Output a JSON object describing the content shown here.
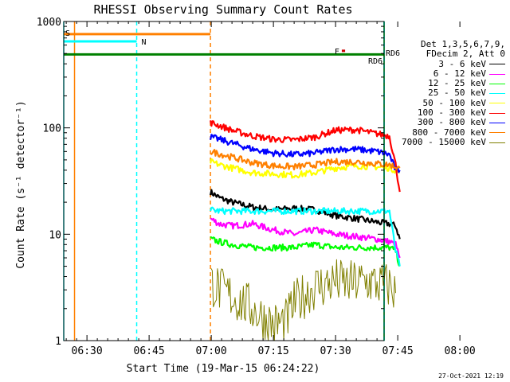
{
  "chart_data": {
    "type": "line",
    "title": "RHESSI Observing Summary Count Rates",
    "xlabel": "Start Time (19-Mar-15 06:24:22)",
    "ylabel": "Count Rate (s⁻¹ detector⁻¹)",
    "yscale": "log",
    "ylim": [
      1,
      1000
    ],
    "xlim_minutes_after_0600": [
      24.4,
      62.0
    ],
    "x_tick_labels": [
      "06:30",
      "06:45",
      "07:00",
      "07:15",
      "07:30",
      "07:45",
      "08:00"
    ],
    "x_tick_minutes_after_0600": [
      30,
      45,
      60,
      75,
      90,
      105,
      120
    ],
    "y_tick_labels": [
      "1",
      "10",
      "100",
      "1000"
    ],
    "y_tick_values": [
      1,
      10,
      100,
      1000
    ],
    "legend_header": [
      "Det 1,3,5,6,7,9,",
      "FDecim 2, Att 0"
    ],
    "legend_placement": "right",
    "series": [
      {
        "name": "3 - 6 keV",
        "color": "#000000",
        "x": [
          59.8,
          62,
          65,
          70,
          75,
          80,
          85,
          90,
          95,
          100,
          103,
          104.5,
          105.5
        ],
        "y": [
          25,
          22,
          20,
          18,
          17,
          17.5,
          17,
          15,
          14,
          13,
          12.5,
          12,
          9
        ]
      },
      {
        "name": "6 - 12 keV",
        "color": "#ff00ff",
        "x": [
          59.8,
          62,
          65,
          70,
          75,
          80,
          85,
          90,
          95,
          100,
          103,
          104.5,
          105.5
        ],
        "y": [
          14,
          12.5,
          12,
          12.5,
          11,
          10,
          11,
          10,
          9.5,
          9,
          8.5,
          8,
          6
        ]
      },
      {
        "name": "12 - 25 keV",
        "color": "#00ff00",
        "x": [
          59.8,
          62,
          65,
          70,
          75,
          80,
          85,
          90,
          95,
          100,
          103,
          104.5,
          105.5
        ],
        "y": [
          9,
          8.5,
          8,
          7.5,
          7.5,
          7.5,
          8,
          7.5,
          7.5,
          7.5,
          7.5,
          7,
          5
        ]
      },
      {
        "name": "25 - 50 keV",
        "color": "#00ffff",
        "x": [
          59.8,
          62,
          65,
          70,
          75,
          80,
          85,
          90,
          95,
          100,
          103,
          104.5,
          105.5
        ],
        "y": [
          17,
          16.5,
          16.5,
          16.5,
          16.5,
          16.5,
          16.5,
          16.5,
          16.5,
          16.5,
          16.5,
          7,
          5
        ]
      },
      {
        "name": "50 - 100 keV",
        "color": "#ffff00",
        "x": [
          59.8,
          62,
          65,
          70,
          75,
          80,
          85,
          90,
          95,
          100,
          103,
          104.5,
          105.5
        ],
        "y": [
          48,
          45,
          42,
          38,
          37,
          36,
          38,
          42,
          44,
          43,
          42,
          40,
          38
        ]
      },
      {
        "name": "100 - 300 keV",
        "color": "#ff0000",
        "x": [
          59.8,
          62,
          65,
          70,
          75,
          80,
          85,
          90,
          95,
          100,
          103,
          104.5,
          105.5
        ],
        "y": [
          112,
          105,
          95,
          84,
          78,
          77,
          82,
          95,
          96,
          88,
          84,
          45,
          25
        ]
      },
      {
        "name": "300 - 800 keV",
        "color": "#0000ff",
        "x": [
          59.8,
          62,
          65,
          70,
          75,
          80,
          85,
          90,
          95,
          100,
          103,
          104.5,
          105.5
        ],
        "y": [
          82,
          78,
          72,
          63,
          58,
          56,
          58,
          63,
          63,
          60,
          56,
          40,
          40
        ]
      },
      {
        "name": "800 - 7000 keV",
        "color": "#ff8000",
        "x": [
          59.8,
          62,
          65,
          70,
          75,
          80,
          85,
          90,
          95,
          100,
          103,
          104.5,
          105.5
        ],
        "y": [
          60,
          57,
          53,
          47,
          44,
          43,
          45,
          48,
          48,
          46,
          45,
          43,
          42
        ]
      },
      {
        "name": "7000 - 15000 keV",
        "color": "#808000",
        "x": [
          60,
          62,
          65,
          68,
          70,
          72,
          75,
          78,
          80,
          83,
          85,
          88,
          90,
          93,
          95,
          98,
          100,
          102,
          103,
          104.5
        ],
        "y": [
          3.5,
          3,
          2.6,
          2.2,
          2.0,
          1.7,
          1.4,
          1.5,
          2.2,
          2.8,
          3.2,
          3.4,
          3.6,
          3.4,
          3.5,
          3.6,
          3.4,
          3.3,
          3.3,
          2.8
        ]
      }
    ],
    "state_bars": [
      {
        "label": "S",
        "color": "#ff8000",
        "x_start": 24.4,
        "x_end": 59.8,
        "y": 760
      },
      {
        "label": "N",
        "color": "#00ffff",
        "x_start": 24.4,
        "x_end": 42.0,
        "y": 650
      },
      {
        "label": "",
        "color": "#00ffff",
        "x_start": 103.0,
        "x_end": 121.0,
        "y": 650
      },
      {
        "label": "",
        "color": "#008000",
        "x_start": 24.4,
        "x_end": 121.0,
        "y": 490
      },
      {
        "label": "F",
        "color": "#cc0000",
        "x_start": 91.5,
        "x_end": 92.3,
        "y": 530
      },
      {
        "label": "RD6",
        "color": "#008000",
        "x_start": 106.5,
        "x_end": 107.5,
        "y": 510
      },
      {
        "label": "RD6",
        "color": "#008000",
        "x_start": 104.5,
        "x_end": 107.8,
        "y": 430
      }
    ],
    "vertical_markers": [
      {
        "x": 24.4,
        "color": "#00ffff",
        "dash": false
      },
      {
        "x": 27.0,
        "color": "#ff8000",
        "dash": false
      },
      {
        "x": 42.0,
        "color": "#00ffff",
        "dash": true
      },
      {
        "x": 59.8,
        "color": "#ff8000",
        "dash": true
      },
      {
        "x": 103.0,
        "color": "#00ffff",
        "dash": false
      },
      {
        "x": 105.8,
        "color": "#00ff00",
        "dash": false
      },
      {
        "x": 121.0,
        "color": "#00ffff",
        "dash": true
      }
    ]
  },
  "timestamp": "27-Oct-2021 12:19"
}
